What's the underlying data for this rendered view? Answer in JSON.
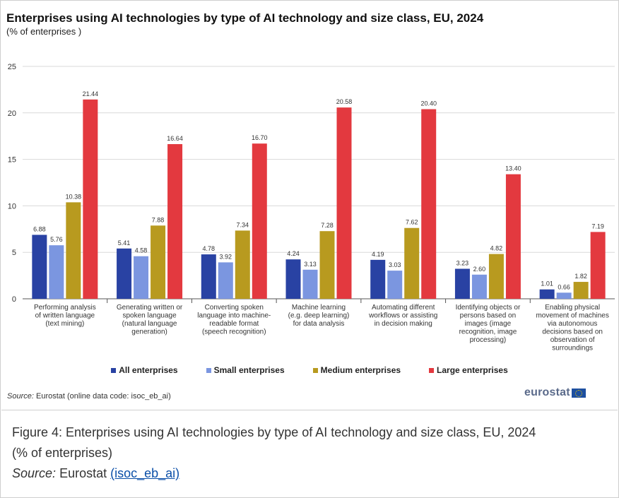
{
  "chart": {
    "title": "Enterprises using AI technologies by type of AI technology and size class, EU, 2024",
    "subtitle": "(% of enterprises )",
    "source_label": "Source:",
    "source_text": "Eurostat (online data code: isoc_eb_ai)",
    "logo_text": "eurostat"
  },
  "caption": {
    "line1": "Figure 4: Enterprises using AI technologies by type of AI technology and size class, EU, 2024",
    "line2": "(% of enterprises)",
    "source_label": "Source:",
    "source_text": "Eurostat",
    "link_text": "(isoc_eb_ai)"
  },
  "chart_data": {
    "type": "bar",
    "title": "Enterprises using AI technologies by type of AI technology and size class, EU, 2024",
    "subtitle": "(% of enterprises )",
    "ylim": [
      0,
      25
    ],
    "yticks": [
      0,
      5,
      10,
      15,
      20,
      25
    ],
    "grid": true,
    "legend_position": "bottom",
    "categories": [
      [
        "Performing analysis",
        "of written language",
        "(text mining)"
      ],
      [
        "Generating written or",
        "spoken language",
        "(natural language",
        "generation)"
      ],
      [
        "Converting spoken",
        "language into machine-",
        "readable format",
        "(speech recognition)"
      ],
      [
        "Machine learning",
        "(e.g. deep learning)",
        "for data analysis"
      ],
      [
        "Automating different",
        "workflows or assisting",
        "in decision making"
      ],
      [
        "Identifying objects or",
        "persons based on",
        "images (image",
        "recognition, image",
        "processing)"
      ],
      [
        "Enabling physical",
        "movement of machines",
        "via autonomous",
        "decisions based on",
        "observation of",
        "surroundings"
      ]
    ],
    "series": [
      {
        "name": "All enterprises",
        "color": "#2942a3",
        "values": [
          6.88,
          5.41,
          4.78,
          4.24,
          4.19,
          3.23,
          1.01
        ],
        "labels": [
          "6.88",
          "5.41",
          "4.78",
          "4.24",
          "4.19",
          "3.23",
          "1.01"
        ]
      },
      {
        "name": "Small enterprises",
        "color": "#7b96e0",
        "values": [
          5.76,
          4.58,
          3.92,
          3.13,
          3.03,
          2.6,
          0.66
        ],
        "labels": [
          "5.76",
          "4.58",
          "3.92",
          "3.13",
          "3.03",
          "2.60",
          "0.66"
        ]
      },
      {
        "name": "Medium enterprises",
        "color": "#b89a1f",
        "values": [
          10.38,
          7.88,
          7.34,
          7.28,
          7.62,
          4.82,
          1.82
        ],
        "labels": [
          "10.38",
          "7.88",
          "7.34",
          "7.28",
          "7.62",
          "4.82",
          "1.82"
        ]
      },
      {
        "name": "Large enterprises",
        "color": "#e3393f",
        "values": [
          21.44,
          16.64,
          16.7,
          20.58,
          20.4,
          13.4,
          7.19
        ],
        "labels": [
          "21.44",
          "16.64",
          "16.70",
          "20.58",
          "20.40",
          "13.40",
          "7.19"
        ]
      }
    ]
  }
}
